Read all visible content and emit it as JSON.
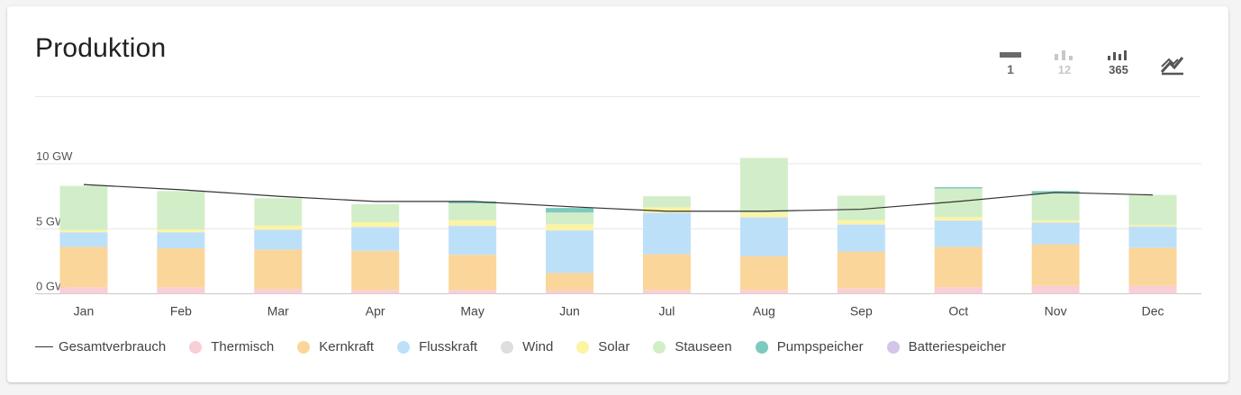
{
  "card": {
    "title": "Produktion"
  },
  "toolbar": {
    "buttons": [
      {
        "label": "1",
        "active": true
      },
      {
        "label": "12",
        "active": false
      },
      {
        "label": "365",
        "active": true
      },
      {
        "label": "",
        "active": true
      }
    ]
  },
  "legend": {
    "items": [
      {
        "label": "Gesamtverbrauch",
        "color": "#333333",
        "kind": "line"
      },
      {
        "label": "Thermisch",
        "color": "#f8cfd6",
        "kind": "dot"
      },
      {
        "label": "Kernkraft",
        "color": "#fbd69a",
        "kind": "dot"
      },
      {
        "label": "Flusskraft",
        "color": "#bde0f9",
        "kind": "dot"
      },
      {
        "label": "Wind",
        "color": "#dedede",
        "kind": "dot"
      },
      {
        "label": "Solar",
        "color": "#fcf4a3",
        "kind": "dot"
      },
      {
        "label": "Stauseen",
        "color": "#d2eec8",
        "kind": "dot"
      },
      {
        "label": "Pumpspeicher",
        "color": "#7dcabe",
        "kind": "dot"
      },
      {
        "label": "Batteriespeicher",
        "color": "#d2c4ea",
        "kind": "dot"
      }
    ]
  },
  "chart_data": {
    "type": "bar",
    "stacked": true,
    "categories": [
      "Jan",
      "Feb",
      "Mar",
      "Apr",
      "May",
      "Jun",
      "Jul",
      "Aug",
      "Sep",
      "Oct",
      "Nov",
      "Dec"
    ],
    "ylim": [
      0,
      10
    ],
    "yticks": [
      {
        "value": 0,
        "label": "0 GW"
      },
      {
        "value": 5,
        "label": "5 GW"
      },
      {
        "value": 10,
        "label": "10 GW"
      }
    ],
    "grid": true,
    "series": [
      {
        "name": "Thermisch",
        "color": "#f8cfd6",
        "values": [
          0.5,
          0.5,
          0.35,
          0.3,
          0.3,
          0.25,
          0.3,
          0.3,
          0.4,
          0.5,
          0.6,
          0.6
        ]
      },
      {
        "name": "Kernkraft",
        "color": "#fbd69a",
        "values": [
          3.1,
          3.0,
          3.05,
          3.0,
          2.7,
          1.35,
          2.75,
          2.6,
          2.85,
          3.1,
          3.2,
          2.95
        ]
      },
      {
        "name": "Flusskraft",
        "color": "#bde0f9",
        "values": [
          1.1,
          1.2,
          1.5,
          1.8,
          2.2,
          3.25,
          3.15,
          2.95,
          2.05,
          2.0,
          1.65,
          1.6
        ]
      },
      {
        "name": "Wind",
        "color": "#dedede",
        "values": [
          0.05,
          0.05,
          0.05,
          0.05,
          0.05,
          0.05,
          0.05,
          0.05,
          0.05,
          0.05,
          0.05,
          0.05
        ]
      },
      {
        "name": "Solar",
        "color": "#fcf4a3",
        "values": [
          0.15,
          0.2,
          0.3,
          0.35,
          0.4,
          0.45,
          0.4,
          0.35,
          0.3,
          0.25,
          0.15,
          0.1
        ]
      },
      {
        "name": "Stauseen",
        "color": "#d2eec8",
        "values": [
          3.4,
          2.95,
          2.1,
          1.4,
          1.3,
          0.9,
          0.85,
          4.2,
          1.9,
          2.2,
          2.05,
          2.3
        ]
      },
      {
        "name": "Pumpspeicher",
        "color": "#7dcabe",
        "values": [
          0.0,
          0.0,
          0.0,
          0.0,
          0.15,
          0.35,
          0.0,
          0.0,
          0.0,
          0.1,
          0.2,
          0.0
        ]
      },
      {
        "name": "Batteriespeicher",
        "color": "#d2c4ea",
        "values": [
          0.0,
          0.0,
          0.0,
          0.0,
          0.0,
          0.0,
          0.0,
          0.0,
          0.0,
          0.0,
          0.0,
          0.0
        ]
      }
    ],
    "line": {
      "name": "Gesamtverbrauch",
      "color": "#333333",
      "values": [
        8.4,
        8.0,
        7.5,
        7.1,
        7.1,
        6.7,
        6.35,
        6.35,
        6.5,
        7.1,
        7.8,
        7.6
      ]
    }
  }
}
